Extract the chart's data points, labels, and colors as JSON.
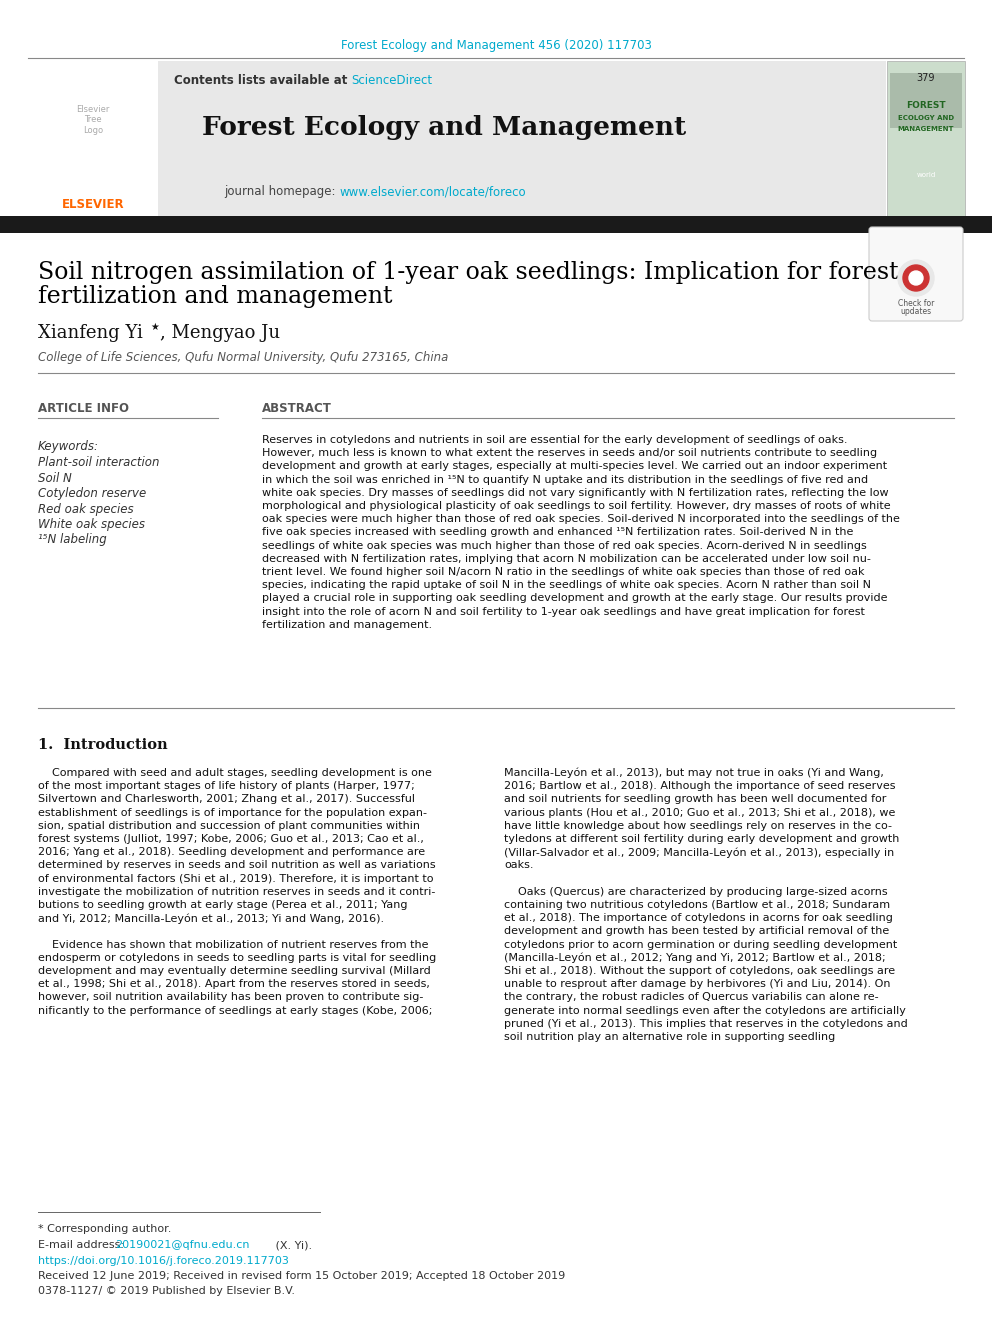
{
  "page_bg": "#ffffff",
  "journal_ref": "Forest Ecology and Management 456 (2020) 117703",
  "journal_ref_color": "#00aacc",
  "header_bg": "#e8e8e8",
  "sciencedirect_color": "#00aacc",
  "journal_title": "Forest Ecology and Management",
  "journal_homepage_url": "www.elsevier.com/locate/foreco",
  "journal_homepage_color": "#00aacc",
  "black_bar_color": "#1a1a1a",
  "article_title_line1": "Soil nitrogen assimilation of 1-year oak seedlings: Implication for forest",
  "article_title_line2": "fertilization and management",
  "article_title_color": "#000000",
  "affiliation": "College of Life Sciences, Qufu Normal University, Qufu 273165, China",
  "article_info_label": "ARTICLE INFO",
  "abstract_label": "ABSTRACT",
  "keywords_label": "Keywords:",
  "keywords": [
    "Plant-soil interaction",
    "Soil N",
    "Cotyledon reserve",
    "Red oak species",
    "White oak species",
    "¹⁵N labeling"
  ],
  "abstract_lines": [
    "Reserves in cotyledons and nutrients in soil are essential for the early development of seedlings of oaks.",
    "However, much less is known to what extent the reserves in seeds and/or soil nutrients contribute to seedling",
    "development and growth at early stages, especially at multi-species level. We carried out an indoor experiment",
    "in which the soil was enriched in ¹⁵N to quantify N uptake and its distribution in the seedlings of five red and",
    "white oak species. Dry masses of seedlings did not vary significantly with N fertilization rates, reflecting the low",
    "morphological and physiological plasticity of oak seedlings to soil fertility. However, dry masses of roots of white",
    "oak species were much higher than those of red oak species. Soil-derived N incorporated into the seedlings of the",
    "five oak species increased with seedling growth and enhanced ¹⁵N fertilization rates. Soil-derived N in the",
    "seedlings of white oak species was much higher than those of red oak species. Acorn-derived N in seedlings",
    "decreased with N fertilization rates, implying that acorn N mobilization can be accelerated under low soil nu-",
    "trient level. We found higher soil N/acorn N ratio in the seedlings of white oak species than those of red oak",
    "species, indicating the rapid uptake of soil N in the seedlings of white oak species. Acorn N rather than soil N",
    "played a crucial role in supporting oak seedling development and growth at the early stage. Our results provide",
    "insight into the role of acorn N and soil fertility to 1-year oak seedlings and have great implication for forest",
    "fertilization and management."
  ],
  "intro_heading": "1.  Introduction",
  "intro_col1_lines": [
    "    Compared with seed and adult stages, seedling development is one",
    "of the most important stages of life history of plants (Harper, 1977;",
    "Silvertown and Charlesworth, 2001; Zhang et al., 2017). Successful",
    "establishment of seedlings is of importance for the population expan-",
    "sion, spatial distribution and succession of plant communities within",
    "forest systems (Julliot, 1997; Kobe, 2006; Guo et al., 2013; Cao et al.,",
    "2016; Yang et al., 2018). Seedling development and performance are",
    "determined by reserves in seeds and soil nutrition as well as variations",
    "of environmental factors (Shi et al., 2019). Therefore, it is important to",
    "investigate the mobilization of nutrition reserves in seeds and it contri-",
    "butions to seedling growth at early stage (Perea et al., 2011; Yang",
    "and Yi, 2012; Mancilla-Leyón et al., 2013; Yi and Wang, 2016).",
    "",
    "    Evidence has shown that mobilization of nutrient reserves from the",
    "endosperm or cotyledons in seeds to seedling parts is vital for seedling",
    "development and may eventually determine seedling survival (Millard",
    "et al., 1998; Shi et al., 2018). Apart from the reserves stored in seeds,",
    "however, soil nutrition availability has been proven to contribute sig-",
    "nificantly to the performance of seedlings at early stages (Kobe, 2006;"
  ],
  "intro_col2_lines": [
    "Mancilla-Leyón et al., 2013), but may not true in oaks (Yi and Wang,",
    "2016; Bartlow et al., 2018). Although the importance of seed reserves",
    "and soil nutrients for seedling growth has been well documented for",
    "various plants (Hou et al., 2010; Guo et al., 2013; Shi et al., 2018), we",
    "have little knowledge about how seedlings rely on reserves in the co-",
    "tyledons at different soil fertility during early development and growth",
    "(Villar-Salvador et al., 2009; Mancilla-Leyón et al., 2013), especially in",
    "oaks.",
    "",
    "    Oaks (Quercus) are characterized by producing large-sized acorns",
    "containing two nutritious cotyledons (Bartlow et al., 2018; Sundaram",
    "et al., 2018). The importance of cotyledons in acorns for oak seedling",
    "development and growth has been tested by artificial removal of the",
    "cotyledons prior to acorn germination or during seedling development",
    "(Mancilla-Leyón et al., 2012; Yang and Yi, 2012; Bartlow et al., 2018;",
    "Shi et al., 2018). Without the support of cotyledons, oak seedlings are",
    "unable to resprout after damage by herbivores (Yi and Liu, 2014). On",
    "the contrary, the robust radicles of Quercus variabilis can alone re-",
    "generate into normal seedlings even after the cotyledons are artificially",
    "pruned (Yi et al., 2013). This implies that reserves in the cotyledons and",
    "soil nutrition play an alternative role in supporting seedling"
  ],
  "footer_note": "* Corresponding author.",
  "footer_email_label": "E-mail address: ",
  "footer_email": "20190021@qfnu.edu.cn",
  "footer_name": " (X. Yi).",
  "footer_doi": "https://doi.org/10.1016/j.foreco.2019.117703",
  "footer_received": "Received 12 June 2019; Received in revised form 15 October 2019; Accepted 18 October 2019",
  "footer_issn": "0378-1127/ © 2019 Published by Elsevier B.V."
}
